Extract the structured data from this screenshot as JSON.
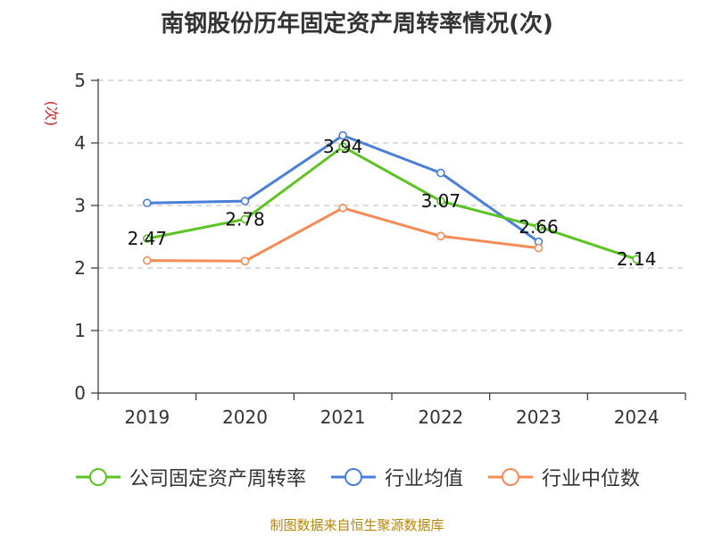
{
  "chart_data": {
    "type": "line",
    "title": "南钢股份历年固定资产周转率情况(次)",
    "ylabel": "(次)",
    "xlabel": "",
    "categories": [
      "2019",
      "2020",
      "2021",
      "2022",
      "2023",
      "2024"
    ],
    "ylim": [
      0,
      5
    ],
    "yticks": [
      0,
      1,
      2,
      3,
      4,
      5
    ],
    "grid": true,
    "legend_position": "bottom",
    "series": [
      {
        "name": "公司固定资产周转率",
        "color": "#5bc424",
        "values": [
          2.47,
          2.78,
          3.94,
          3.07,
          2.66,
          2.14
        ],
        "labels": [
          "2.47",
          "2.78",
          "3.94",
          "3.07",
          "2.66",
          "2.14"
        ]
      },
      {
        "name": "行业均值",
        "color": "#4a7fd8",
        "values": [
          3.04,
          3.07,
          4.12,
          3.52,
          2.42,
          null
        ]
      },
      {
        "name": "行业中位数",
        "color": "#f68c55",
        "values": [
          2.12,
          2.11,
          2.96,
          2.51,
          2.32,
          null
        ]
      }
    ],
    "source": "制图数据来自恒生聚源数据库"
  }
}
